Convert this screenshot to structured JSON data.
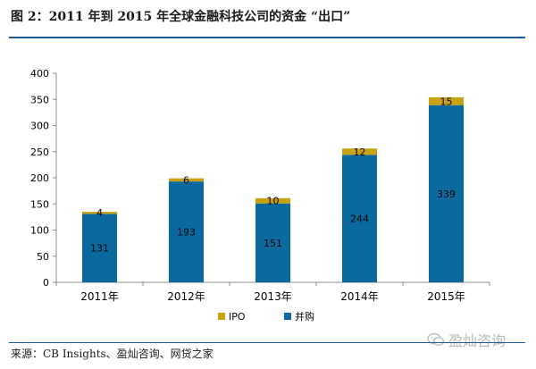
{
  "figure": {
    "title": "图 2：2011 年到 2015 年全球金融科技公司的资金 “出口”",
    "source": "来源：CB Insights、盈灿咨询、网贷之家",
    "watermark": "盈灿咨询"
  },
  "colors": {
    "ipo": "#c9a211",
    "mna": "#0a6aa0",
    "rule": "#1d5a9b",
    "axis": "#8c8c8c"
  },
  "chart_data": {
    "type": "bar",
    "stacked": true,
    "categories": [
      "2011年",
      "2012年",
      "2013年",
      "2014年",
      "2015年"
    ],
    "series": [
      {
        "name": "并购",
        "values": [
          131,
          193,
          151,
          244,
          339
        ]
      },
      {
        "name": "IPO",
        "values": [
          4,
          6,
          10,
          12,
          15
        ]
      }
    ],
    "ylim": [
      0,
      400
    ],
    "yticks": [
      0,
      50,
      100,
      150,
      200,
      250,
      300,
      350,
      400
    ],
    "grid": false,
    "legend": "bottom-center",
    "legend_entries": [
      "IPO",
      "并购"
    ]
  }
}
